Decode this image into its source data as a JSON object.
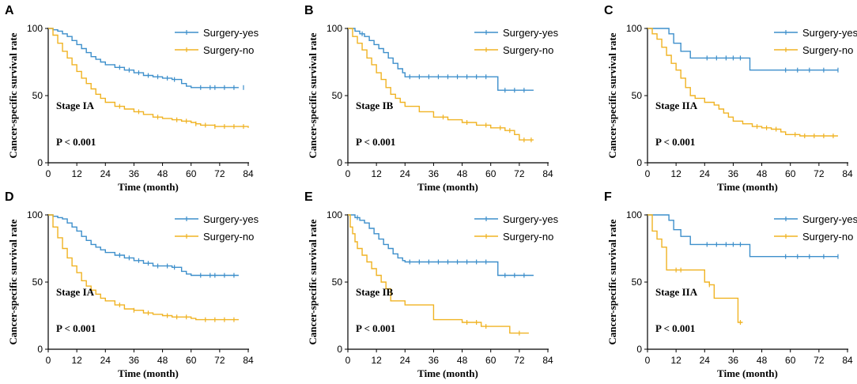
{
  "colors": {
    "yes": "#3d8fcb",
    "no": "#f0b323",
    "axis": "#000000"
  },
  "chart_data": [
    {
      "panel": "A",
      "type": "line",
      "stage": "Stage IA",
      "pvalue": "P < 0.001",
      "title": "",
      "xlabel": "Time (month)",
      "ylabel": "Cancer-specific survival rate",
      "xlim": [
        0,
        84
      ],
      "ylim": [
        0,
        100
      ],
      "xticks": [
        "0",
        "12",
        "24",
        "36",
        "48",
        "60",
        "72",
        "84"
      ],
      "yticks": [
        "0",
        "50",
        "100"
      ],
      "legend": [
        "Surgery-yes",
        "Surgery-no"
      ],
      "series": [
        {
          "name": "Surgery-yes",
          "x": [
            0,
            2,
            4,
            6,
            8,
            10,
            12,
            14,
            16,
            18,
            20,
            22,
            24,
            28,
            32,
            36,
            40,
            44,
            48,
            52,
            56,
            58,
            60,
            66,
            72,
            80
          ],
          "y": [
            100,
            99,
            98,
            96,
            94,
            91,
            88,
            85,
            82,
            79,
            77,
            75,
            73,
            71,
            69,
            67,
            65,
            64,
            63,
            62,
            59,
            57,
            56,
            56,
            56,
            56
          ],
          "censor_x": [
            30,
            34,
            38,
            42,
            46,
            50,
            53,
            64,
            68,
            70,
            74,
            78,
            82
          ]
        },
        {
          "name": "Surgery-no",
          "x": [
            0,
            2,
            4,
            6,
            8,
            10,
            12,
            14,
            16,
            18,
            20,
            22,
            24,
            28,
            32,
            36,
            40,
            44,
            48,
            52,
            56,
            60,
            62,
            64,
            70,
            76,
            84
          ],
          "y": [
            100,
            95,
            89,
            83,
            78,
            73,
            68,
            63,
            59,
            55,
            51,
            48,
            45,
            42,
            40,
            38,
            36,
            34,
            33,
            32,
            31,
            30,
            29,
            28,
            27,
            27,
            26
          ],
          "censor_x": [
            30,
            38,
            46,
            54,
            58,
            62,
            66,
            70,
            74,
            78,
            82
          ]
        }
      ]
    },
    {
      "panel": "B",
      "type": "line",
      "stage": "Stage IB",
      "pvalue": "P < 0.001",
      "title": "",
      "xlabel": "Time (month)",
      "ylabel": "Cancer-specific survival rate",
      "xlim": [
        0,
        84
      ],
      "ylim": [
        0,
        100
      ],
      "xticks": [
        "0",
        "12",
        "24",
        "36",
        "48",
        "60",
        "72",
        "84"
      ],
      "yticks": [
        "0",
        "50",
        "100"
      ],
      "legend": [
        "Surgery-yes",
        "Surgery-no"
      ],
      "series": [
        {
          "name": "Surgery-yes",
          "x": [
            0,
            3,
            5,
            7,
            9,
            11,
            13,
            15,
            17,
            19,
            21,
            23,
            24,
            62,
            63,
            78
          ],
          "y": [
            100,
            98,
            96,
            94,
            91,
            88,
            85,
            82,
            78,
            74,
            70,
            67,
            64,
            64,
            54,
            54
          ],
          "censor_x": [
            6,
            26,
            30,
            34,
            38,
            42,
            46,
            50,
            54,
            58,
            66,
            70,
            74
          ]
        },
        {
          "name": "Surgery-no",
          "x": [
            0,
            2,
            4,
            6,
            8,
            10,
            12,
            14,
            16,
            18,
            20,
            22,
            24,
            30,
            36,
            42,
            48,
            54,
            60,
            66,
            70,
            72,
            78
          ],
          "y": [
            100,
            94,
            89,
            84,
            78,
            73,
            67,
            62,
            56,
            51,
            48,
            45,
            42,
            38,
            34,
            32,
            30,
            28,
            26,
            24,
            21,
            17,
            17
          ],
          "censor_x": [
            40,
            50,
            58,
            64,
            68,
            74,
            77
          ]
        }
      ]
    },
    {
      "panel": "C",
      "type": "line",
      "stage": "Stage IIA",
      "pvalue": "P < 0.001",
      "title": "",
      "xlabel": "Time (month)",
      "ylabel": "Cancer-specific survival rate",
      "xlim": [
        0,
        84
      ],
      "ylim": [
        0,
        100
      ],
      "xticks": [
        "0",
        "12",
        "24",
        "36",
        "48",
        "60",
        "72",
        "84"
      ],
      "yticks": [
        "0",
        "50",
        "100"
      ],
      "legend": [
        "Surgery-yes",
        "Surgery-no"
      ],
      "series": [
        {
          "name": "Surgery-yes",
          "x": [
            0,
            9,
            11,
            14,
            18,
            42,
            43,
            80
          ],
          "y": [
            100,
            96,
            89,
            83,
            78,
            78,
            69,
            69
          ],
          "censor_x": [
            25,
            29,
            33,
            36,
            39,
            58,
            63,
            68,
            74,
            80
          ]
        },
        {
          "name": "Surgery-no",
          "x": [
            0,
            2,
            4,
            6,
            8,
            10,
            12,
            14,
            16,
            18,
            20,
            24,
            28,
            30,
            32,
            34,
            36,
            40,
            44,
            48,
            52,
            56,
            58,
            64,
            72,
            80
          ],
          "y": [
            100,
            96,
            92,
            86,
            80,
            74,
            69,
            63,
            56,
            50,
            48,
            45,
            43,
            40,
            37,
            34,
            31,
            29,
            27,
            26,
            25,
            23,
            21,
            20,
            20,
            20
          ],
          "censor_x": [
            46,
            50,
            54,
            62,
            66,
            70,
            74,
            78
          ]
        }
      ]
    },
    {
      "panel": "D",
      "type": "line",
      "stage": "Stage IA",
      "pvalue": "P < 0.001",
      "title": "",
      "xlabel": "Time (month)",
      "ylabel": "Cancer-specific survival rate",
      "xlim": [
        0,
        84
      ],
      "ylim": [
        0,
        100
      ],
      "xticks": [
        "0",
        "12",
        "24",
        "36",
        "48",
        "60",
        "72",
        "84"
      ],
      "yticks": [
        "0",
        "50",
        "100"
      ],
      "legend": [
        "Surgery-yes",
        "Surgery-no"
      ],
      "series": [
        {
          "name": "Surgery-yes",
          "x": [
            0,
            2,
            4,
            6,
            8,
            10,
            12,
            14,
            16,
            18,
            20,
            22,
            24,
            28,
            32,
            36,
            40,
            44,
            48,
            52,
            56,
            58,
            60,
            66,
            72,
            80
          ],
          "y": [
            100,
            99,
            98,
            97,
            94,
            91,
            88,
            84,
            81,
            78,
            76,
            74,
            72,
            70,
            68,
            66,
            64,
            62,
            62,
            61,
            58,
            56,
            55,
            55,
            55,
            55
          ],
          "censor_x": [
            30,
            34,
            38,
            42,
            46,
            50,
            53,
            64,
            68,
            70,
            74,
            78
          ]
        },
        {
          "name": "Surgery-no",
          "x": [
            0,
            2,
            4,
            6,
            8,
            10,
            12,
            14,
            16,
            18,
            20,
            22,
            24,
            28,
            32,
            36,
            40,
            44,
            48,
            52,
            56,
            60,
            62,
            64,
            70,
            80
          ],
          "y": [
            100,
            91,
            83,
            75,
            68,
            62,
            57,
            51,
            47,
            44,
            41,
            38,
            36,
            33,
            30,
            29,
            27,
            26,
            25,
            24,
            24,
            23,
            22,
            22,
            22,
            22
          ],
          "censor_x": [
            30,
            36,
            42,
            50,
            54,
            58,
            66,
            70,
            74,
            78
          ]
        }
      ]
    },
    {
      "panel": "E",
      "type": "line",
      "stage": "Stage IB",
      "pvalue": "P < 0.001",
      "title": "",
      "xlabel": "Time (month)",
      "ylabel": "Cancer-specific survival rate",
      "xlim": [
        0,
        84
      ],
      "ylim": [
        0,
        100
      ],
      "xticks": [
        "0",
        "12",
        "24",
        "36",
        "48",
        "60",
        "72",
        "84"
      ],
      "yticks": [
        "0",
        "50",
        "100"
      ],
      "legend": [
        "Surgery-yes",
        "Surgery-no"
      ],
      "series": [
        {
          "name": "Surgery-yes",
          "x": [
            0,
            3,
            5,
            7,
            9,
            11,
            13,
            15,
            17,
            19,
            21,
            23,
            24,
            62,
            63,
            78
          ],
          "y": [
            100,
            98,
            96,
            94,
            90,
            86,
            82,
            78,
            75,
            71,
            68,
            66,
            65,
            65,
            55,
            55
          ],
          "censor_x": [
            4,
            26,
            30,
            34,
            38,
            42,
            46,
            50,
            54,
            58,
            66,
            70,
            74
          ]
        },
        {
          "name": "Surgery-no",
          "x": [
            0,
            1,
            2,
            3,
            4,
            6,
            8,
            10,
            12,
            14,
            16,
            18,
            24,
            36,
            48,
            56,
            68,
            72,
            76
          ],
          "y": [
            100,
            91,
            86,
            80,
            75,
            70,
            65,
            60,
            55,
            50,
            45,
            36,
            33,
            22,
            20,
            17,
            12,
            12,
            12
          ],
          "censor_x": [
            50,
            54,
            58,
            72
          ]
        }
      ]
    },
    {
      "panel": "F",
      "type": "line",
      "stage": "Stage IIA",
      "pvalue": "P < 0.001",
      "title": "",
      "xlabel": "Time (month)",
      "ylabel": "Cancer-specific survival rate",
      "xlim": [
        0,
        84
      ],
      "ylim": [
        0,
        100
      ],
      "xticks": [
        "0",
        "12",
        "24",
        "36",
        "48",
        "60",
        "72",
        "84"
      ],
      "yticks": [
        "0",
        "50",
        "100"
      ],
      "legend": [
        "Surgery-yes",
        "Surgery-no"
      ],
      "series": [
        {
          "name": "Surgery-yes",
          "x": [
            0,
            9,
            11,
            14,
            18,
            42,
            43,
            80
          ],
          "y": [
            100,
            96,
            89,
            84,
            78,
            78,
            69,
            69
          ],
          "censor_x": [
            25,
            29,
            33,
            36,
            39,
            58,
            63,
            68,
            74,
            80
          ]
        },
        {
          "name": "Surgery-no",
          "x": [
            0,
            2,
            4,
            6,
            8,
            16,
            24,
            26,
            28,
            30,
            36,
            38,
            40
          ],
          "y": [
            100,
            88,
            82,
            76,
            59,
            59,
            50,
            48,
            38,
            38,
            38,
            20,
            20
          ],
          "censor_x": [
            12,
            14,
            26,
            39
          ]
        }
      ]
    }
  ]
}
